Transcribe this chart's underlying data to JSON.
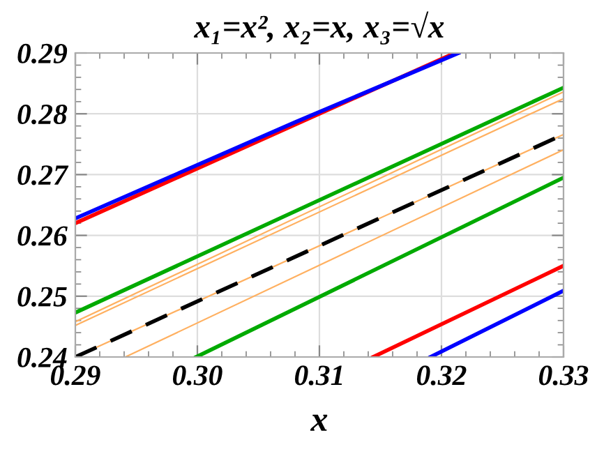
{
  "chart_data": {
    "type": "line",
    "title": "x₁=x², x₂=x, x₃=√x",
    "xlabel": "x",
    "xlim": [
      0.29,
      0.33
    ],
    "ylim": [
      0.24,
      0.29
    ],
    "xticks": [
      0.29,
      {
        "value": 0.292,
        "label": null
      },
      {
        "value": 0.294,
        "label": null
      },
      {
        "value": 0.296,
        "label": null
      },
      {
        "value": 0.298,
        "label": null
      },
      {
        "value": 0.3,
        "label": "0.30"
      },
      {
        "value": 0.302,
        "label": null
      },
      {
        "value": 0.304,
        "label": null
      },
      {
        "value": 0.306,
        "label": null
      },
      {
        "value": 0.308,
        "label": null
      },
      0.31,
      {
        "value": 0.312,
        "label": null
      },
      {
        "value": 0.314,
        "label": null
      },
      {
        "value": 0.316,
        "label": null
      },
      {
        "value": 0.318,
        "label": null
      },
      0.32,
      {
        "value": 0.322,
        "label": null
      },
      {
        "value": 0.324,
        "label": null
      },
      {
        "value": 0.326,
        "label": null
      },
      {
        "value": 0.328,
        "label": null
      },
      0.33
    ],
    "yticks": [
      0.24,
      {
        "value": 0.242,
        "label": null
      },
      {
        "value": 0.244,
        "label": null
      },
      {
        "value": 0.246,
        "label": null
      },
      {
        "value": 0.248,
        "label": null
      },
      0.25,
      {
        "value": 0.252,
        "label": null
      },
      {
        "value": 0.254,
        "label": null
      },
      {
        "value": 0.256,
        "label": null
      },
      {
        "value": 0.258,
        "label": null
      },
      0.26,
      {
        "value": 0.262,
        "label": null
      },
      {
        "value": 0.264,
        "label": null
      },
      {
        "value": 0.266,
        "label": null
      },
      {
        "value": 0.268,
        "label": null
      },
      0.27,
      {
        "value": 0.272,
        "label": null
      },
      {
        "value": 0.274,
        "label": null
      },
      {
        "value": 0.276,
        "label": null
      },
      {
        "value": 0.278,
        "label": null
      },
      0.28,
      {
        "value": 0.282,
        "label": null
      },
      {
        "value": 0.284,
        "label": null
      },
      {
        "value": 0.286,
        "label": null
      },
      {
        "value": 0.288,
        "label": null
      },
      0.29
    ],
    "grid": true,
    "legend": false,
    "marker": "none",
    "series": [
      {
        "color": "#ffb060",
        "line_style": "solid",
        "x": [
          0.29,
          0.33
        ],
        "values": [
          0.2458,
          0.2836
        ]
      },
      {
        "color": "#ffb060",
        "line_style": "solid",
        "x": [
          0.29,
          0.33
        ],
        "values": [
          0.2452,
          0.2825
        ]
      },
      {
        "color": "#ffb060",
        "line_style": "solid",
        "x": [
          0.29,
          0.33
        ],
        "values": [
          0.24,
          0.2766
        ]
      },
      {
        "color": "#ffb060",
        "line_style": "solid",
        "x": [
          0.2941,
          0.33
        ],
        "values": [
          0.24,
          0.2741
        ]
      },
      {
        "color": "#000000",
        "line_style": "dashed",
        "x": [
          0.29,
          0.33
        ],
        "values": [
          0.24,
          0.2766
        ]
      },
      {
        "color": "#00aa00",
        "line_style": "solid",
        "x": [
          0.29,
          0.33
        ],
        "values": [
          0.2473,
          0.2843
        ]
      },
      {
        "color": "#00aa00",
        "line_style": "solid",
        "x": [
          0.2999,
          0.33
        ],
        "values": [
          0.24,
          0.2695
        ]
      },
      {
        "color": "#ff0000",
        "line_style": "solid",
        "x": [
          0.29,
          0.3211
        ],
        "values": [
          0.262,
          0.29
        ]
      },
      {
        "color": "#0000ff",
        "line_style": "solid",
        "x": [
          0.29,
          0.308,
          0.3214
        ],
        "values": [
          0.2628,
          0.2786,
          0.29
        ]
      },
      {
        "color": "#ff0000",
        "line_style": "solid",
        "x": [
          0.3144,
          0.33
        ],
        "values": [
          0.24,
          0.255
        ]
      },
      {
        "color": "#0000ff",
        "line_style": "solid",
        "x": [
          0.3191,
          0.33
        ],
        "values": [
          0.24,
          0.2509
        ]
      }
    ]
  }
}
